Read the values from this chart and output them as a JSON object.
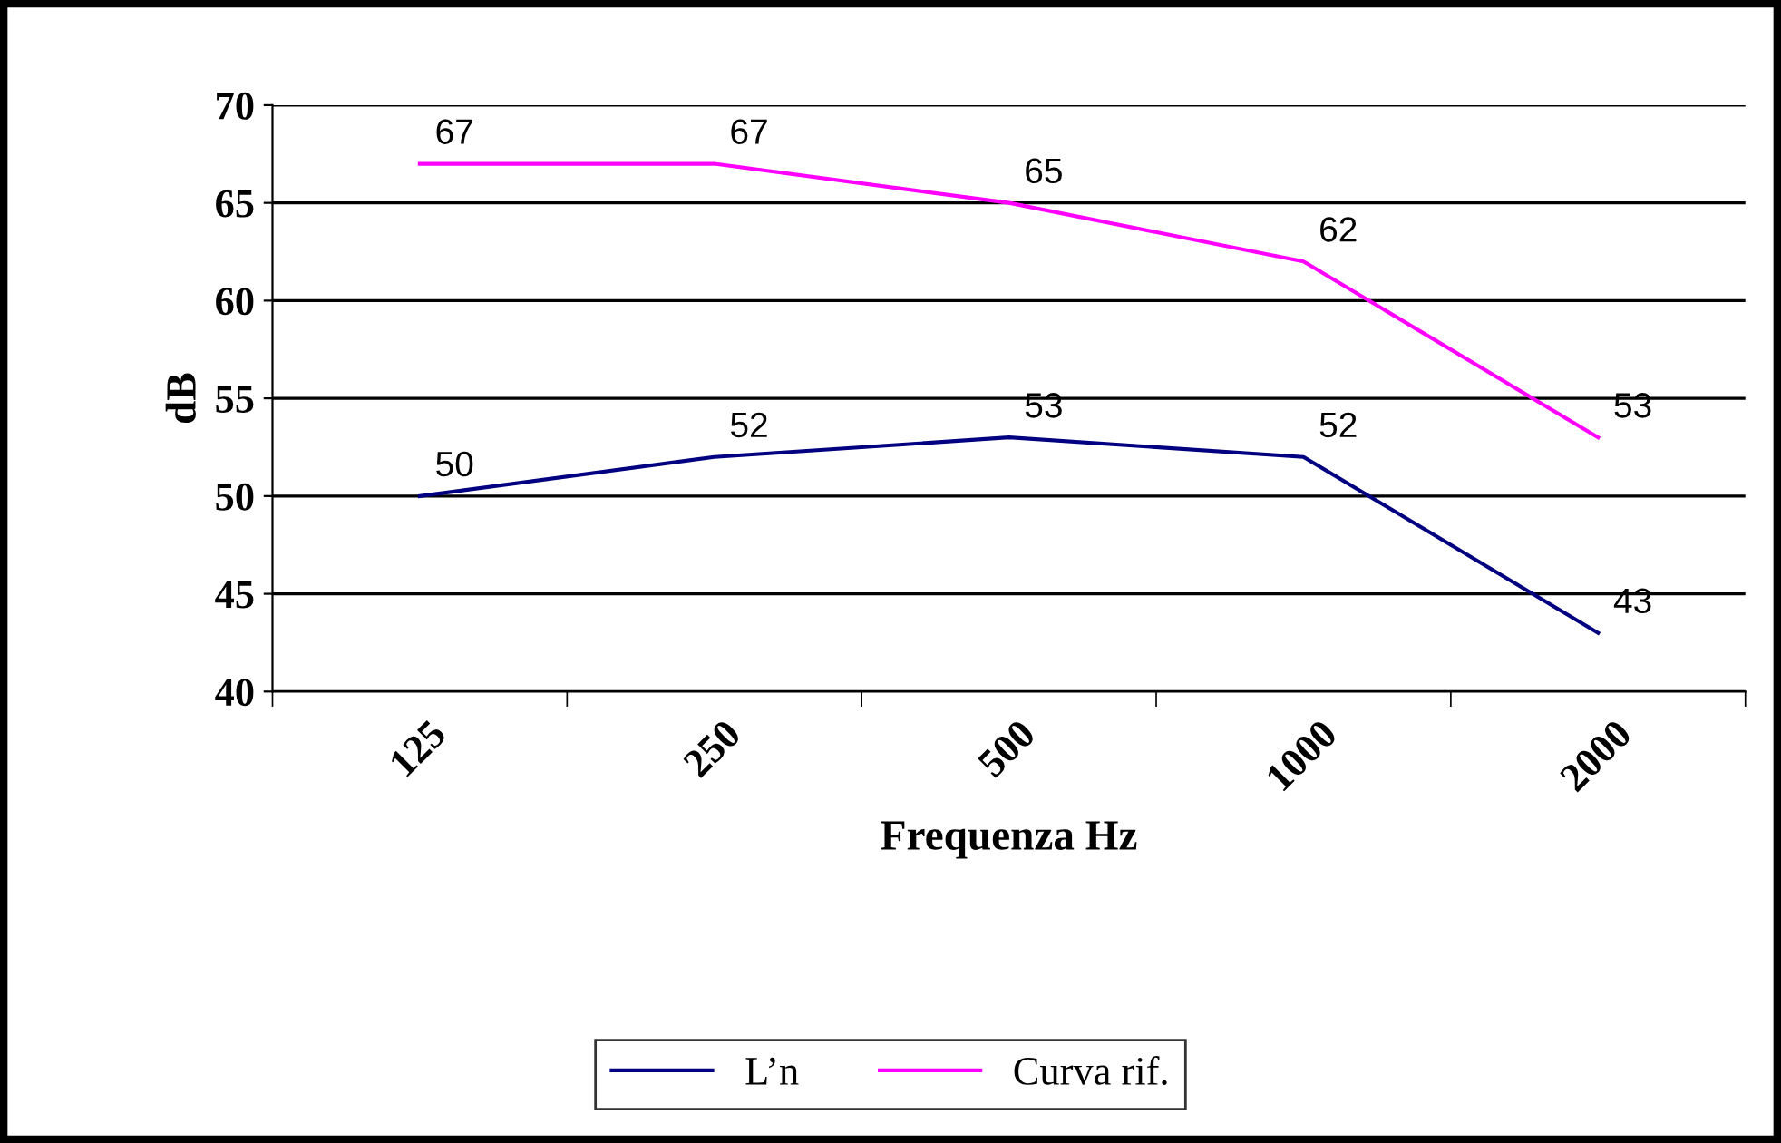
{
  "chart_data": {
    "type": "line",
    "xlabel": "Frequenza Hz",
    "ylabel": "dB",
    "categories": [
      "125",
      "250",
      "500",
      "1000",
      "2000"
    ],
    "series": [
      {
        "name": "L’n",
        "color": "#000080",
        "values": [
          50,
          52,
          53,
          52,
          43
        ]
      },
      {
        "name": "Curva rif.",
        "color": "#ff00ff",
        "values": [
          67,
          67,
          65,
          62,
          53
        ]
      }
    ],
    "ylim": [
      40,
      70
    ],
    "yticks": [
      40,
      45,
      50,
      55,
      60,
      65,
      70
    ],
    "grid": "y",
    "legend": "bottom",
    "data_labels": true,
    "marker": "none",
    "line_style": "solid"
  }
}
